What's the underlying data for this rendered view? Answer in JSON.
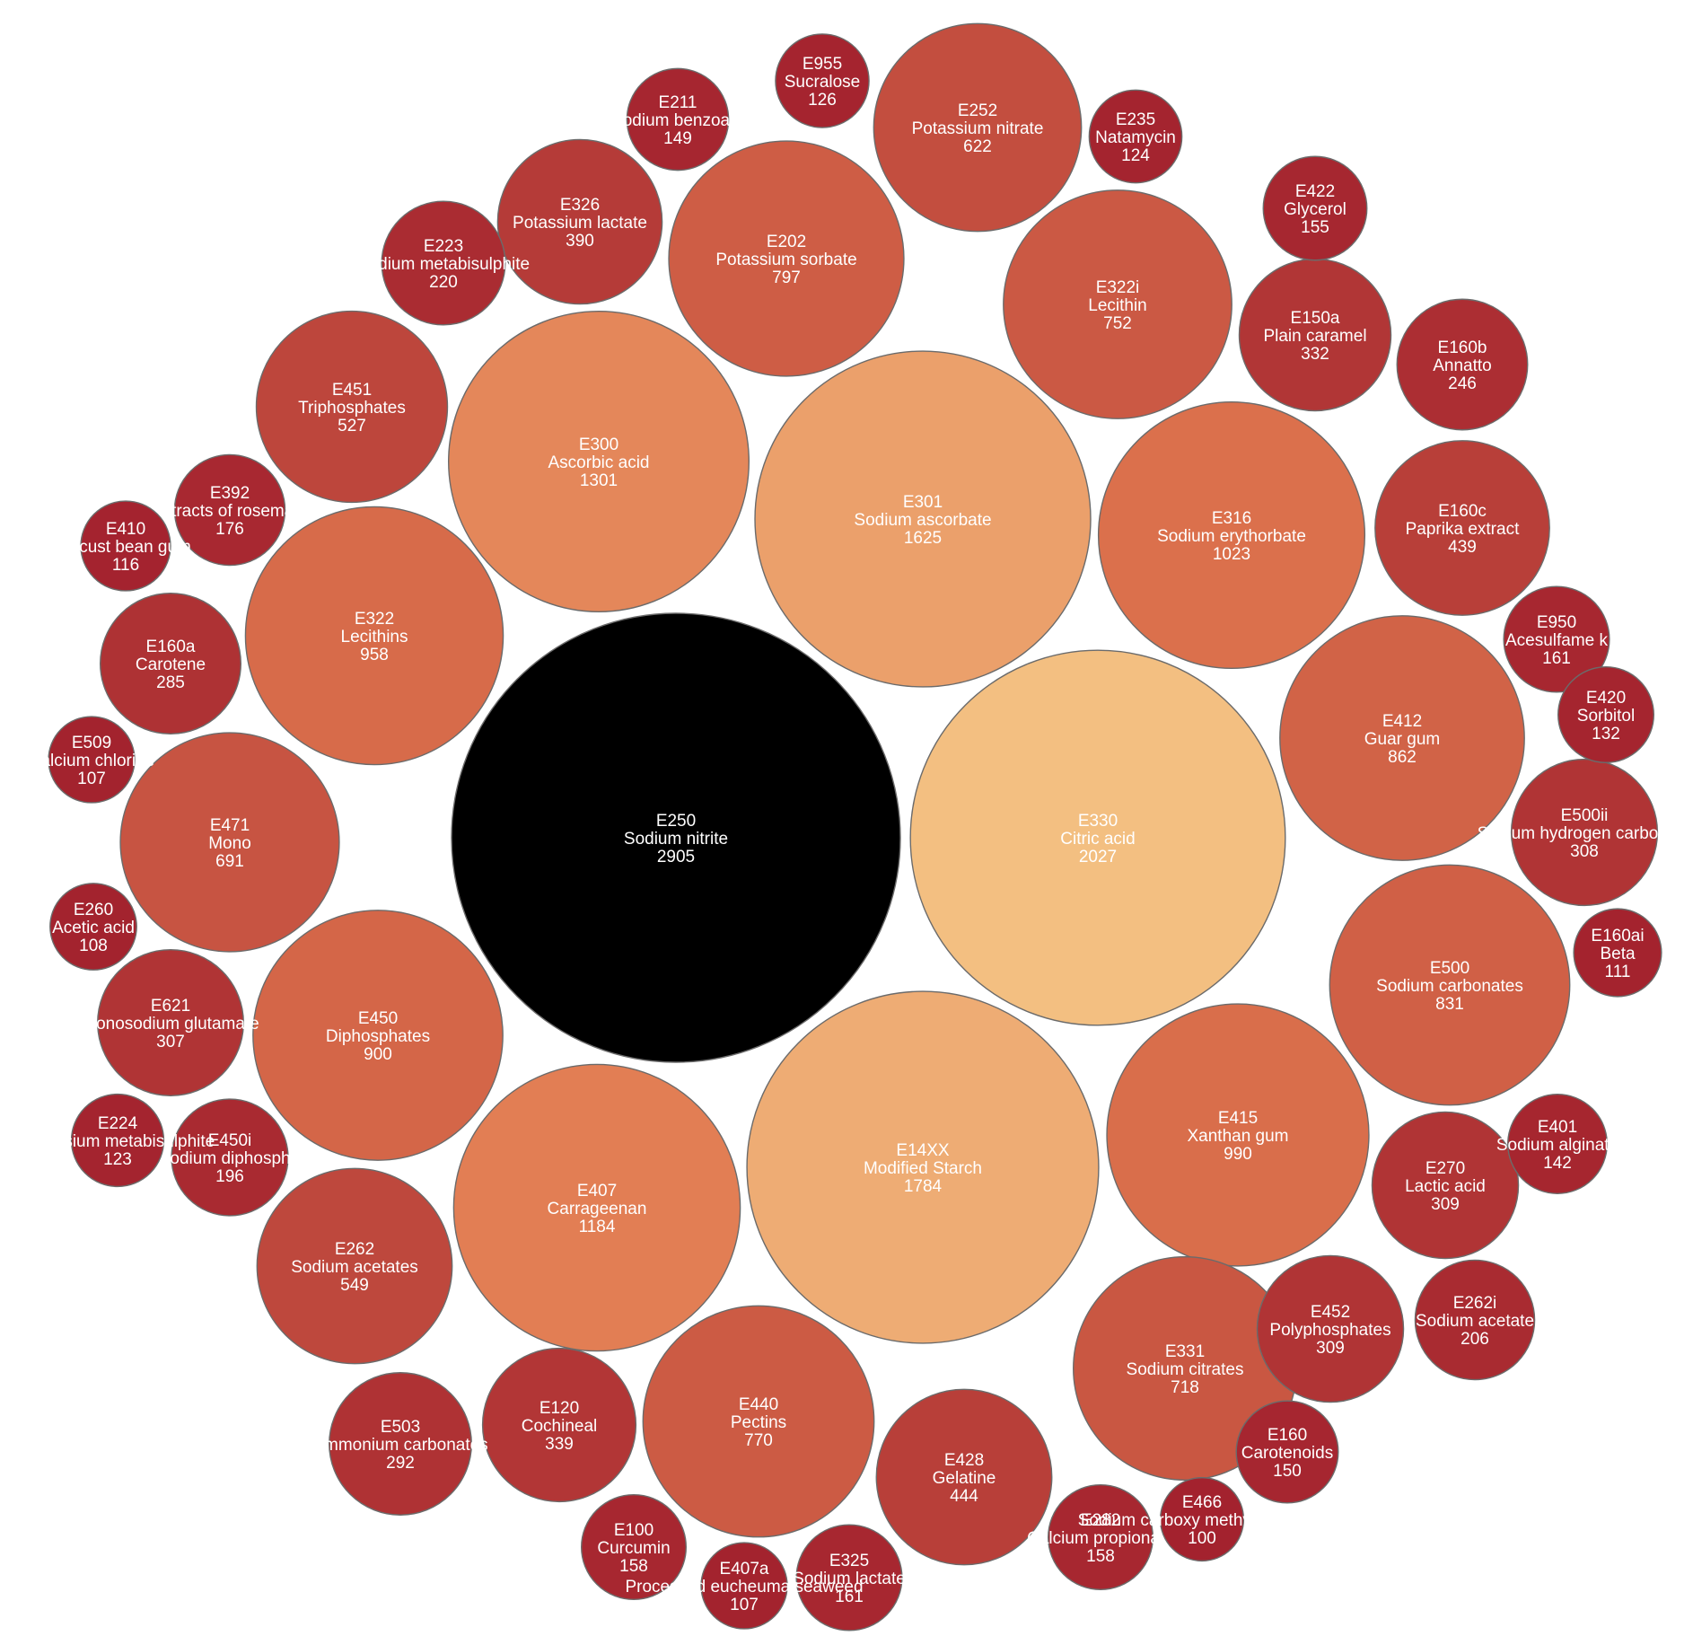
{
  "chart_data": {
    "type": "bubble",
    "color_scale": {
      "min_color": "#a3222e",
      "mid_color": "#e0774f",
      "max_color": "#f4c585",
      "top_value_color": "#000000"
    },
    "items": [
      {
        "code": "E250",
        "name": "Sodium nitrite",
        "value": 2905
      },
      {
        "code": "E330",
        "name": "Citric acid",
        "value": 2027
      },
      {
        "code": "E14XX",
        "name": "Modified Starch",
        "value": 1784
      },
      {
        "code": "E301",
        "name": "Sodium ascorbate",
        "value": 1625
      },
      {
        "code": "E300",
        "name": "Ascorbic acid",
        "value": 1301
      },
      {
        "code": "E407",
        "name": "Carrageenan",
        "value": 1184
      },
      {
        "code": "E316",
        "name": "Sodium erythorbate",
        "value": 1023
      },
      {
        "code": "E415",
        "name": "Xanthan gum",
        "value": 990
      },
      {
        "code": "E322",
        "name": "Lecithins",
        "value": 958
      },
      {
        "code": "E450",
        "name": "Diphosphates",
        "value": 900
      },
      {
        "code": "E412",
        "name": "Guar gum",
        "value": 862
      },
      {
        "code": "E500",
        "name": "Sodium carbonates",
        "value": 831
      },
      {
        "code": "E202",
        "name": "Potassium sorbate",
        "value": 797
      },
      {
        "code": "E440",
        "name": "Pectins",
        "value": 770
      },
      {
        "code": "E322i",
        "name": "Lecithin",
        "value": 752
      },
      {
        "code": "E331",
        "name": "Sodium citrates",
        "value": 718
      },
      {
        "code": "E471",
        "name": "Mono",
        "value": 691
      },
      {
        "code": "E252",
        "name": "Potassium nitrate",
        "value": 622
      },
      {
        "code": "E262",
        "name": "Sodium acetates",
        "value": 549
      },
      {
        "code": "E451",
        "name": "Triphosphates",
        "value": 527
      },
      {
        "code": "E428",
        "name": "Gelatine",
        "value": 444
      },
      {
        "code": "E160c",
        "name": "Paprika extract",
        "value": 439
      },
      {
        "code": "E326",
        "name": "Potassium lactate",
        "value": 390
      },
      {
        "code": "E120",
        "name": "Cochineal",
        "value": 339
      },
      {
        "code": "E150a",
        "name": "Plain caramel",
        "value": 332
      },
      {
        "code": "E270",
        "name": "Lactic acid",
        "value": 309
      },
      {
        "code": "E452",
        "name": "Polyphosphates",
        "value": 309
      },
      {
        "code": "E500ii",
        "name": "Sodium hydrogen carbonate",
        "value": 308
      },
      {
        "code": "E621",
        "name": "Monosodium glutamate",
        "value": 307
      },
      {
        "code": "E503",
        "name": "Ammonium carbonates",
        "value": 292
      },
      {
        "code": "E160a",
        "name": "Carotene",
        "value": 285
      },
      {
        "code": "E160b",
        "name": "Annatto",
        "value": 246
      },
      {
        "code": "E223",
        "name": "Sodium metabisulphite",
        "value": 220
      },
      {
        "code": "E262i",
        "name": "Sodium acetate",
        "value": 206
      },
      {
        "code": "E450i",
        "name": "Disodium diphosphate",
        "value": 196
      },
      {
        "code": "E392",
        "name": "Extracts of rosemary",
        "value": 176
      },
      {
        "code": "E325",
        "name": "Sodium lactate",
        "value": 161
      },
      {
        "code": "E950",
        "name": "Acesulfame k",
        "value": 161
      },
      {
        "code": "E100",
        "name": "Curcumin",
        "value": 158
      },
      {
        "code": "E282",
        "name": "Calcium propionate",
        "value": 158
      },
      {
        "code": "E422",
        "name": "Glycerol",
        "value": 155
      },
      {
        "code": "E160",
        "name": "Carotenoids",
        "value": 150
      },
      {
        "code": "E211",
        "name": "Sodium benzoate",
        "value": 149
      },
      {
        "code": "E401",
        "name": "Sodium alginate",
        "value": 142
      },
      {
        "code": "E420",
        "name": "Sorbitol",
        "value": 132
      },
      {
        "code": "E955",
        "name": "Sucralose",
        "value": 126
      },
      {
        "code": "E235",
        "name": "Natamycin",
        "value": 124
      },
      {
        "code": "E224",
        "name": "Potassium metabisulphite",
        "value": 123
      },
      {
        "code": "E410",
        "name": "Locust bean gum",
        "value": 116
      },
      {
        "code": "E160ai",
        "name": "Beta",
        "value": 111
      },
      {
        "code": "E260",
        "name": "Acetic acid",
        "value": 108
      },
      {
        "code": "E509",
        "name": "Calcium chloride",
        "value": 107
      },
      {
        "code": "E407a",
        "name": "Processed eucheuma seaweed",
        "value": 107
      },
      {
        "code": "E466",
        "name": "Sodium carboxy methyl cellulose",
        "value": 100
      }
    ]
  }
}
